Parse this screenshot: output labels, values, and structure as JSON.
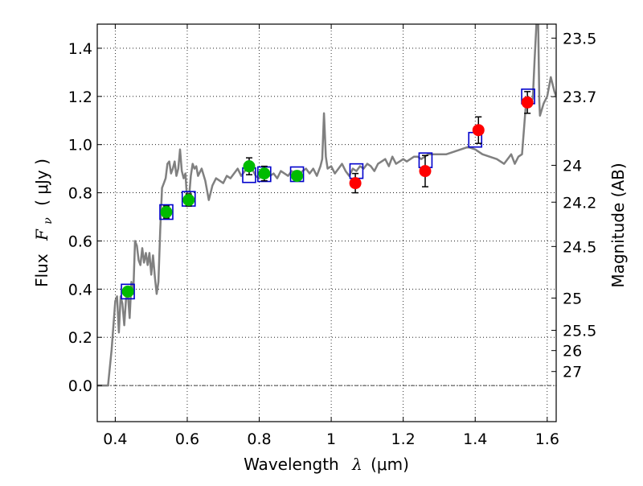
{
  "chart_data": {
    "type": "scatter",
    "xlabel_text": "Wavelength",
    "xlabel_symbol": "λ",
    "xlabel_unit": "(μm)",
    "ylabel_text": "Flux",
    "ylabel_symbol": "F",
    "ylabel_sub": "ν",
    "ylabel_unit": "( μJy )",
    "y2label": "Magnitude (AB)",
    "xlim": [
      0.35,
      1.625
    ],
    "ylim": [
      -0.15,
      1.5
    ],
    "x_ticks": [
      0.4,
      0.6,
      0.8,
      1.0,
      1.2,
      1.4,
      1.6
    ],
    "x_tick_labels": [
      "0.4",
      "0.6",
      "0.8",
      "1",
      "1.2",
      "1.4",
      "1.6"
    ],
    "y_ticks": [
      0.0,
      0.2,
      0.4,
      0.6,
      0.8,
      1.0,
      1.2,
      1.4
    ],
    "y_tick_labels": [
      "0.0",
      "0.2",
      "0.4",
      "0.6",
      "0.8",
      "1.0",
      "1.2",
      "1.4"
    ],
    "mag_ticks": [
      {
        "flux": 1.442,
        "label": "23.5"
      },
      {
        "flux": 1.199,
        "label": "23.7"
      },
      {
        "flux": 0.914,
        "label": "24"
      },
      {
        "flux": 0.761,
        "label": "24.2"
      },
      {
        "flux": 0.577,
        "label": "24.5"
      },
      {
        "flux": 0.363,
        "label": "25"
      },
      {
        "flux": 0.229,
        "label": "25.5"
      },
      {
        "flux": 0.145,
        "label": "26"
      },
      {
        "flux": 0.058,
        "label": "27"
      }
    ],
    "grid": true,
    "colors": {
      "sed": "#808080",
      "optical": "#00bb00",
      "infrared": "#ff0000",
      "model_box": "#0000cc",
      "errorbar": "#000000"
    },
    "optical_points": [
      {
        "x": 0.435,
        "y": 0.39,
        "err": 0.015
      },
      {
        "x": 0.542,
        "y": 0.72,
        "err": 0.025
      },
      {
        "x": 0.604,
        "y": 0.77,
        "err": 0.025
      },
      {
        "x": 0.772,
        "y": 0.91,
        "err": 0.035
      },
      {
        "x": 0.814,
        "y": 0.88,
        "err": 0.03
      },
      {
        "x": 0.905,
        "y": 0.87,
        "err": 0.02
      }
    ],
    "infrared_points": [
      {
        "x": 1.067,
        "y": 0.84,
        "err": 0.04
      },
      {
        "x": 1.261,
        "y": 0.89,
        "err": 0.065
      },
      {
        "x": 1.409,
        "y": 1.06,
        "err": 0.055
      },
      {
        "x": 1.545,
        "y": 1.175,
        "err": 0.045
      }
    ],
    "model_boxes": [
      {
        "x": 0.435,
        "y": 0.39
      },
      {
        "x": 0.542,
        "y": 0.72
      },
      {
        "x": 0.604,
        "y": 0.775
      },
      {
        "x": 0.772,
        "y": 0.873
      },
      {
        "x": 0.814,
        "y": 0.877
      },
      {
        "x": 0.905,
        "y": 0.877
      },
      {
        "x": 1.07,
        "y": 0.89
      },
      {
        "x": 1.262,
        "y": 0.935
      },
      {
        "x": 1.4,
        "y": 1.02
      },
      {
        "x": 1.547,
        "y": 1.2
      }
    ],
    "sed_curve": [
      [
        0.35,
        0.0
      ],
      [
        0.38,
        0.0
      ],
      [
        0.39,
        0.15
      ],
      [
        0.4,
        0.35
      ],
      [
        0.405,
        0.37
      ],
      [
        0.41,
        0.22
      ],
      [
        0.415,
        0.37
      ],
      [
        0.42,
        0.34
      ],
      [
        0.425,
        0.25
      ],
      [
        0.43,
        0.36
      ],
      [
        0.435,
        0.38
      ],
      [
        0.44,
        0.28
      ],
      [
        0.445,
        0.43
      ],
      [
        0.45,
        0.38
      ],
      [
        0.455,
        0.6
      ],
      [
        0.46,
        0.58
      ],
      [
        0.465,
        0.52
      ],
      [
        0.47,
        0.5
      ],
      [
        0.475,
        0.57
      ],
      [
        0.48,
        0.51
      ],
      [
        0.485,
        0.55
      ],
      [
        0.49,
        0.5
      ],
      [
        0.495,
        0.55
      ],
      [
        0.5,
        0.46
      ],
      [
        0.505,
        0.54
      ],
      [
        0.51,
        0.45
      ],
      [
        0.515,
        0.38
      ],
      [
        0.52,
        0.43
      ],
      [
        0.525,
        0.65
      ],
      [
        0.53,
        0.82
      ],
      [
        0.535,
        0.84
      ],
      [
        0.54,
        0.86
      ],
      [
        0.545,
        0.92
      ],
      [
        0.55,
        0.93
      ],
      [
        0.555,
        0.88
      ],
      [
        0.56,
        0.9
      ],
      [
        0.565,
        0.93
      ],
      [
        0.57,
        0.87
      ],
      [
        0.575,
        0.9
      ],
      [
        0.58,
        0.98
      ],
      [
        0.585,
        0.89
      ],
      [
        0.59,
        0.86
      ],
      [
        0.595,
        0.88
      ],
      [
        0.6,
        0.76
      ],
      [
        0.605,
        0.78
      ],
      [
        0.61,
        0.87
      ],
      [
        0.615,
        0.92
      ],
      [
        0.62,
        0.9
      ],
      [
        0.625,
        0.91
      ],
      [
        0.63,
        0.87
      ],
      [
        0.64,
        0.9
      ],
      [
        0.65,
        0.85
      ],
      [
        0.66,
        0.77
      ],
      [
        0.67,
        0.83
      ],
      [
        0.68,
        0.86
      ],
      [
        0.69,
        0.85
      ],
      [
        0.7,
        0.84
      ],
      [
        0.71,
        0.87
      ],
      [
        0.72,
        0.86
      ],
      [
        0.73,
        0.88
      ],
      [
        0.74,
        0.9
      ],
      [
        0.75,
        0.87
      ],
      [
        0.76,
        0.89
      ],
      [
        0.77,
        0.92
      ],
      [
        0.78,
        0.9
      ],
      [
        0.79,
        0.87
      ],
      [
        0.8,
        0.86
      ],
      [
        0.81,
        0.89
      ],
      [
        0.82,
        0.88
      ],
      [
        0.83,
        0.87
      ],
      [
        0.84,
        0.88
      ],
      [
        0.85,
        0.86
      ],
      [
        0.86,
        0.89
      ],
      [
        0.87,
        0.88
      ],
      [
        0.88,
        0.87
      ],
      [
        0.89,
        0.89
      ],
      [
        0.9,
        0.88
      ],
      [
        0.91,
        0.87
      ],
      [
        0.92,
        0.89
      ],
      [
        0.93,
        0.9
      ],
      [
        0.94,
        0.88
      ],
      [
        0.95,
        0.9
      ],
      [
        0.96,
        0.87
      ],
      [
        0.97,
        0.91
      ],
      [
        0.975,
        0.94
      ],
      [
        0.98,
        1.13
      ],
      [
        0.985,
        0.95
      ],
      [
        0.99,
        0.9
      ],
      [
        1.0,
        0.91
      ],
      [
        1.01,
        0.88
      ],
      [
        1.02,
        0.9
      ],
      [
        1.03,
        0.92
      ],
      [
        1.04,
        0.89
      ],
      [
        1.05,
        0.87
      ],
      [
        1.06,
        0.9
      ],
      [
        1.07,
        0.89
      ],
      [
        1.08,
        0.91
      ],
      [
        1.09,
        0.9
      ],
      [
        1.1,
        0.92
      ],
      [
        1.11,
        0.91
      ],
      [
        1.12,
        0.89
      ],
      [
        1.13,
        0.92
      ],
      [
        1.14,
        0.93
      ],
      [
        1.15,
        0.94
      ],
      [
        1.16,
        0.91
      ],
      [
        1.17,
        0.95
      ],
      [
        1.18,
        0.92
      ],
      [
        1.19,
        0.93
      ],
      [
        1.2,
        0.94
      ],
      [
        1.21,
        0.93
      ],
      [
        1.22,
        0.94
      ],
      [
        1.23,
        0.95
      ],
      [
        1.24,
        0.95
      ],
      [
        1.25,
        0.94
      ],
      [
        1.26,
        0.95
      ],
      [
        1.27,
        0.96
      ],
      [
        1.28,
        0.96
      ],
      [
        1.3,
        0.96
      ],
      [
        1.32,
        0.96
      ],
      [
        1.34,
        0.97
      ],
      [
        1.36,
        0.98
      ],
      [
        1.38,
        0.99
      ],
      [
        1.4,
        0.98
      ],
      [
        1.42,
        0.96
      ],
      [
        1.44,
        0.95
      ],
      [
        1.46,
        0.94
      ],
      [
        1.48,
        0.92
      ],
      [
        1.495,
        0.95
      ],
      [
        1.5,
        0.96
      ],
      [
        1.51,
        0.92
      ],
      [
        1.52,
        0.95
      ],
      [
        1.53,
        0.96
      ],
      [
        1.54,
        1.15
      ],
      [
        1.55,
        1.17
      ],
      [
        1.56,
        1.19
      ],
      [
        1.565,
        1.35
      ],
      [
        1.57,
        1.5
      ],
      [
        1.575,
        1.5
      ],
      [
        1.578,
        1.18
      ],
      [
        1.58,
        1.12
      ],
      [
        1.59,
        1.17
      ],
      [
        1.6,
        1.2
      ],
      [
        1.61,
        1.28
      ],
      [
        1.62,
        1.22
      ],
      [
        1.625,
        1.2
      ]
    ]
  }
}
